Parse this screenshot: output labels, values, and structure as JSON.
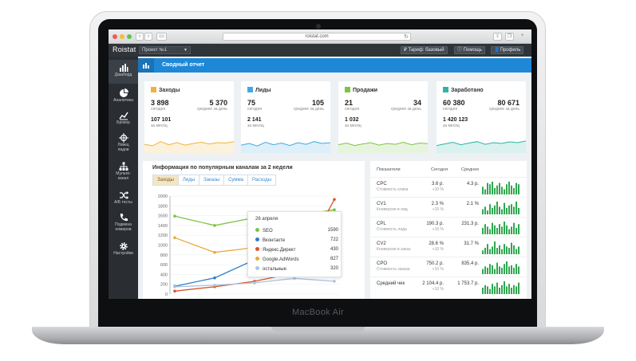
{
  "device_label": "MacBook Air",
  "browser": {
    "url": "roistat.com"
  },
  "header": {
    "logo": "Roistat",
    "project": "Проект №1",
    "tariff": "Тариф: базовый",
    "help": "Помощь",
    "profile": "Профиль"
  },
  "sidebar": {
    "items": [
      {
        "label": "Дашборд",
        "icon": "bar-chart-icon"
      },
      {
        "label": "Аналитика",
        "icon": "pie-chart-icon"
      },
      {
        "label": "Брокер",
        "icon": "trend-line-icon"
      },
      {
        "label": "Ловец лидов",
        "icon": "crosshair-icon"
      },
      {
        "label": "Мульти-канал",
        "icon": "hierarchy-icon"
      },
      {
        "label": "А/Б тесты",
        "icon": "shuffle-icon"
      },
      {
        "label": "Подмена номеров",
        "icon": "phone-icon"
      },
      {
        "label": "Настройки",
        "icon": "gear-icon"
      }
    ]
  },
  "page": {
    "title": "Сводный отчет"
  },
  "cards": [
    {
      "title": "Заходы",
      "v1": "3 898",
      "l1": "сегодня",
      "v2": "5 370",
      "l2": "среднее за день",
      "v3": "107 101",
      "l3": "за месяц",
      "accent": "#f0b338",
      "spark": [
        0.42,
        0.35,
        0.55,
        0.4,
        0.5,
        0.38,
        0.46,
        0.52,
        0.44,
        0.5,
        0.48,
        0.55
      ]
    },
    {
      "title": "Лиды",
      "v1": "75",
      "l1": "сегодня",
      "v2": "105",
      "l2": "среднее за день",
      "v3": "2 141",
      "l3": "за месяц",
      "accent": "#42a8e0",
      "spark": [
        0.38,
        0.46,
        0.34,
        0.52,
        0.4,
        0.48,
        0.36,
        0.5,
        0.42,
        0.55,
        0.46,
        0.5
      ]
    },
    {
      "title": "Продажи",
      "v1": "21",
      "l1": "сегодня",
      "v2": "34",
      "l2": "среднее за день",
      "v3": "1 032",
      "l3": "за месяц",
      "accent": "#7cc443",
      "spark": [
        0.4,
        0.48,
        0.36,
        0.44,
        0.5,
        0.38,
        0.46,
        0.42,
        0.52,
        0.4,
        0.48,
        0.45
      ]
    },
    {
      "title": "Заработано",
      "v1": "60 380",
      "l1": "сегодня",
      "v2": "80 671",
      "l2": "среднее за день",
      "v3": "1 420 123",
      "l3": "за месяц",
      "accent": "#2fb3a6",
      "spark": [
        0.36,
        0.44,
        0.52,
        0.4,
        0.48,
        0.55,
        0.42,
        0.5,
        0.46,
        0.54,
        0.5,
        0.58
      ]
    }
  ],
  "channels_panel": {
    "title": "Информация по популярным каналам за 2 недели",
    "tabs": [
      "Заходы",
      "Лиды",
      "Заказы",
      "Сумма",
      "Расходы"
    ],
    "active_tab": 0,
    "tooltip": {
      "date": "26 апреля",
      "rows": [
        {
          "name": "SEO",
          "value": "1590",
          "color": "#7cc443"
        },
        {
          "name": "Вконтакте",
          "value": "722",
          "color": "#2e7fcc"
        },
        {
          "name": "Яндекс.Директ",
          "value": "430",
          "color": "#d9542b"
        },
        {
          "name": "Google.AdWords",
          "value": "827",
          "color": "#e8a93a"
        },
        {
          "name": "остальные",
          "value": "320",
          "color": "#a9c5de"
        }
      ]
    }
  },
  "chart_data": {
    "type": "line",
    "title": "Информация по популярным каналам за 2 недели",
    "xlabel": "",
    "ylabel": "",
    "ylim": [
      0,
      2000
    ],
    "yticks": [
      0,
      200,
      400,
      600,
      800,
      1000,
      1200,
      1400,
      1600,
      1800,
      2000
    ],
    "x": [
      1,
      2,
      3,
      4,
      5
    ],
    "series": [
      {
        "name": "SEO",
        "color": "#7cc443",
        "values": [
          1590,
          1400,
          1560,
          1590,
          1720
        ]
      },
      {
        "name": "Google.AdWords",
        "color": "#e8a93a",
        "values": [
          1150,
          850,
          950,
          827,
          1150
        ]
      },
      {
        "name": "Вконтакте",
        "color": "#2e7fcc",
        "values": [
          160,
          330,
          700,
          722,
          800
        ]
      },
      {
        "name": "Яндекс.Директ",
        "color": "#d9542b",
        "values": [
          60,
          150,
          260,
          430,
          1930
        ]
      },
      {
        "name": "остальные",
        "color": "#a9c5de",
        "values": [
          150,
          180,
          230,
          320,
          260
        ]
      }
    ]
  },
  "metrics_table": {
    "headers": [
      "Показатели",
      "Сегодня",
      "Среднее"
    ],
    "rows": [
      {
        "name": "CPC",
        "sub": "Стоимость клика",
        "today": "3.6 р.",
        "delta": "+10 %",
        "avg": "4.3 р.",
        "bars": [
          6,
          4,
          9,
          8,
          10,
          5,
          7,
          9,
          6,
          4,
          8,
          10,
          7,
          5,
          9,
          8
        ]
      },
      {
        "name": "CV1",
        "sub": "Конверсия в лид",
        "today": "2.3 %",
        "delta": "+15 %",
        "avg": "2.1 %",
        "bars": [
          4,
          6,
          3,
          8,
          5,
          7,
          10,
          6,
          4,
          9,
          5,
          7,
          8,
          6,
          10,
          5
        ]
      },
      {
        "name": "CPL",
        "sub": "Стоимость лида",
        "today": "190.3 р.",
        "delta": "+16 %",
        "avg": "231.3 р.",
        "bars": [
          5,
          8,
          6,
          4,
          9,
          7,
          5,
          8,
          6,
          10,
          7,
          4,
          6,
          9,
          5,
          8
        ]
      },
      {
        "name": "CV2",
        "sub": "Конверсия в заказ",
        "today": "28.6 %",
        "delta": "+10 %",
        "avg": "31.7 %",
        "bars": [
          3,
          5,
          8,
          4,
          6,
          10,
          5,
          7,
          4,
          8,
          6,
          5,
          9,
          7,
          4,
          6
        ]
      },
      {
        "name": "CPO",
        "sub": "Стоимость заказа",
        "today": "750.2 р.",
        "delta": "+10 %",
        "avg": "835.4 р.",
        "bars": [
          4,
          6,
          5,
          8,
          7,
          4,
          9,
          6,
          5,
          8,
          10,
          6,
          7,
          5,
          8,
          6
        ]
      },
      {
        "name": "Средний чек",
        "sub": "",
        "today": "2 104.4 р.",
        "delta": "+10 %",
        "avg": "1 753.7 р.",
        "bars": [
          5,
          7,
          6,
          4,
          8,
          6,
          9,
          5,
          7,
          10,
          6,
          8,
          5,
          7,
          6,
          9
        ]
      }
    ]
  },
  "colors": {
    "sidebar": "#2a2e33",
    "topbar": "#2f3439",
    "accent": "#1e88d6"
  }
}
